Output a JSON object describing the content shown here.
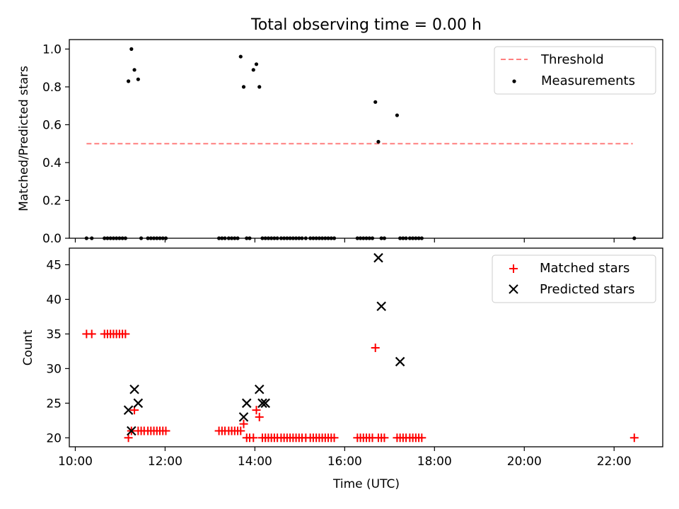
{
  "figure": {
    "title": "Total observing time = 0.00 h"
  },
  "chart_data": [
    {
      "type": "scatter",
      "panel": "top",
      "ylabel": "Matched/Predicted stars",
      "xlabel": "",
      "xlim": [
        "09:52",
        "23:05"
      ],
      "ylim": [
        0,
        1.05
      ],
      "yticks": [
        0.0,
        0.2,
        0.4,
        0.6,
        0.8,
        1.0
      ],
      "ytick_labels": [
        "0.0",
        "0.2",
        "0.4",
        "0.6",
        "0.8",
        "1.0"
      ],
      "xticks": [
        "10:00",
        "12:00",
        "14:00",
        "16:00",
        "18:00",
        "20:00",
        "22:00"
      ],
      "legend_position": "upper right",
      "legend": [
        {
          "label": "Threshold",
          "style": "dashed-line",
          "color": "#ff7f7f"
        },
        {
          "label": "Measurements",
          "style": "dot",
          "color": "#000000"
        }
      ],
      "threshold": {
        "value": 0.5,
        "x": [
          "10:15",
          "22:25"
        ],
        "color": "#ff7f7f"
      },
      "series": [
        {
          "name": "Measurements",
          "color": "#000000",
          "x": [
            "10:15",
            "10:22",
            "10:39",
            "10:43",
            "10:47",
            "10:51",
            "10:55",
            "10:59",
            "11:03",
            "11:07",
            "11:11",
            "11:15",
            "11:19",
            "11:24",
            "11:28",
            "11:37",
            "11:41",
            "11:45",
            "11:49",
            "11:53",
            "11:57",
            "12:01",
            "13:12",
            "13:16",
            "13:20",
            "13:25",
            "13:29",
            "13:33",
            "13:37",
            "13:41",
            "13:45",
            "13:49",
            "13:53",
            "13:58",
            "14:02",
            "14:06",
            "14:10",
            "14:14",
            "14:18",
            "14:22",
            "14:26",
            "14:30",
            "14:35",
            "14:39",
            "14:43",
            "14:47",
            "14:51",
            "14:55",
            "14:59",
            "15:03",
            "15:08",
            "15:14",
            "15:18",
            "15:22",
            "15:26",
            "15:30",
            "15:34",
            "15:38",
            "15:42",
            "15:46",
            "16:17",
            "16:21",
            "16:25",
            "16:29",
            "16:33",
            "16:37",
            "16:41",
            "16:45",
            "16:49",
            "16:53",
            "17:10",
            "17:14",
            "17:18",
            "17:22",
            "17:27",
            "17:31",
            "17:35",
            "17:39",
            "17:43",
            "22:27"
          ],
          "y": [
            0,
            0,
            0,
            0,
            0,
            0,
            0,
            0,
            0,
            0,
            0.83,
            1.0,
            0.89,
            0.84,
            0,
            0,
            0,
            0,
            0,
            0,
            0,
            0,
            0,
            0,
            0,
            0,
            0,
            0,
            0,
            0.96,
            0.8,
            0,
            0,
            0.89,
            0.92,
            0.8,
            0,
            0,
            0,
            0,
            0,
            0,
            0,
            0,
            0,
            0,
            0,
            0,
            0,
            0,
            0,
            0,
            0,
            0,
            0,
            0,
            0,
            0,
            0,
            0,
            0,
            0,
            0,
            0,
            0,
            0,
            0.72,
            0.51,
            0,
            0,
            0.65,
            0,
            0,
            0,
            0,
            0,
            0,
            0,
            0,
            0
          ]
        }
      ]
    },
    {
      "type": "scatter",
      "panel": "bottom",
      "ylabel": "Count",
      "xlabel": "Time (UTC)",
      "xlim": [
        "09:52",
        "23:05"
      ],
      "ylim": [
        18.7,
        47.4
      ],
      "yticks": [
        20,
        25,
        30,
        35,
        40,
        45
      ],
      "ytick_labels": [
        "20",
        "25",
        "30",
        "35",
        "40",
        "45"
      ],
      "xticks": [
        "10:00",
        "12:00",
        "14:00",
        "16:00",
        "18:00",
        "20:00",
        "22:00"
      ],
      "xtick_labels": [
        "10:00",
        "12:00",
        "14:00",
        "16:00",
        "18:00",
        "20:00",
        "22:00"
      ],
      "legend_position": "upper right",
      "legend": [
        {
          "label": "Matched stars",
          "style": "plus",
          "color": "#ff0000"
        },
        {
          "label": "Predicted stars",
          "style": "x",
          "color": "#000000"
        }
      ],
      "series": [
        {
          "name": "Matched stars",
          "color": "#ff0000",
          "marker": "plus",
          "x": [
            "10:15",
            "10:22",
            "10:39",
            "10:43",
            "10:47",
            "10:51",
            "10:55",
            "10:59",
            "11:03",
            "11:07",
            "11:11",
            "11:15",
            "11:19",
            "11:24",
            "11:28",
            "11:32",
            "11:37",
            "11:41",
            "11:45",
            "11:49",
            "11:53",
            "11:57",
            "12:01",
            "13:12",
            "13:16",
            "13:20",
            "13:25",
            "13:29",
            "13:33",
            "13:37",
            "13:41",
            "13:45",
            "13:49",
            "13:53",
            "13:58",
            "14:02",
            "14:06",
            "14:10",
            "14:14",
            "14:18",
            "14:22",
            "14:26",
            "14:30",
            "14:35",
            "14:39",
            "14:43",
            "14:47",
            "14:51",
            "14:55",
            "14:59",
            "15:03",
            "15:08",
            "15:14",
            "15:18",
            "15:22",
            "15:26",
            "15:30",
            "15:34",
            "15:38",
            "15:42",
            "15:46",
            "16:17",
            "16:21",
            "16:25",
            "16:29",
            "16:33",
            "16:37",
            "16:41",
            "16:45",
            "16:49",
            "16:53",
            "17:10",
            "17:14",
            "17:18",
            "17:22",
            "17:27",
            "17:31",
            "17:35",
            "17:39",
            "17:43",
            "22:27"
          ],
          "y": [
            35,
            35,
            35,
            35,
            35,
            35,
            35,
            35,
            35,
            35,
            20,
            21,
            24,
            21,
            21,
            21,
            21,
            21,
            21,
            21,
            21,
            21,
            21,
            21,
            21,
            21,
            21,
            21,
            21,
            21,
            21,
            22,
            20,
            20,
            20,
            24,
            23,
            20,
            20,
            20,
            20,
            20,
            20,
            20,
            20,
            20,
            20,
            20,
            20,
            20,
            20,
            20,
            20,
            20,
            20,
            20,
            20,
            20,
            20,
            20,
            20,
            20,
            20,
            20,
            20,
            20,
            20,
            33,
            20,
            20,
            20,
            20,
            20,
            20,
            20,
            20,
            20,
            20,
            20,
            20,
            20
          ]
        },
        {
          "name": "Predicted stars",
          "color": "#000000",
          "marker": "x",
          "x": [
            "11:11",
            "11:15",
            "11:19",
            "11:24",
            "13:45",
            "13:49",
            "14:06",
            "14:10",
            "14:14",
            "16:45",
            "16:49",
            "17:14"
          ],
          "y": [
            24,
            21,
            27,
            25,
            23,
            25,
            27,
            25,
            25,
            46,
            39,
            31
          ]
        }
      ]
    }
  ]
}
